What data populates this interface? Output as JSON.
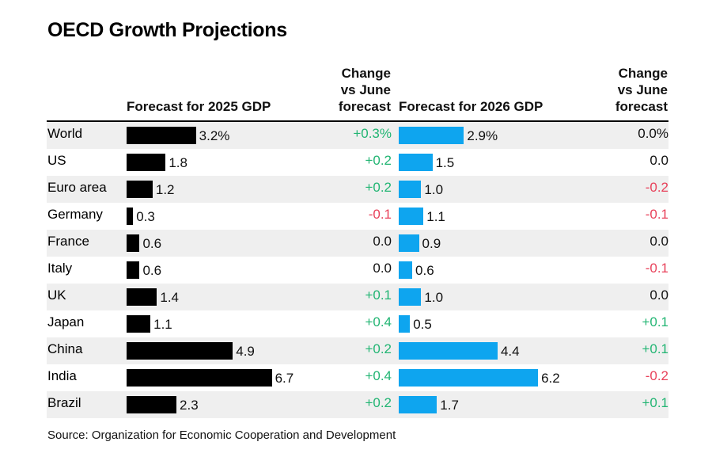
{
  "title": "OECD Growth Projections",
  "headers": {
    "f2025": "Forecast for 2025 GDP",
    "chg2025": [
      "Change",
      "vs June",
      "forecast"
    ],
    "f2026": "Forecast for 2026 GDP",
    "chg2026": [
      "Change",
      "vs June",
      "forecast"
    ]
  },
  "source": "Source: Organization for Economic Cooperation and Development",
  "colors": {
    "bar2025": "#000000",
    "bar2026": "#0ea5ef",
    "positive": "#22b573",
    "negative": "#e8415a",
    "neutral": "#111111",
    "shade": "#efefef"
  },
  "chart_data": {
    "type": "bar",
    "title": "OECD Growth Projections",
    "categories": [
      "World",
      "US",
      "Euro area",
      "Germany",
      "France",
      "Italy",
      "UK",
      "Japan",
      "China",
      "India",
      "Brazil"
    ],
    "series": [
      {
        "name": "Forecast for 2025 GDP",
        "values": [
          3.2,
          1.8,
          1.2,
          0.3,
          0.6,
          0.6,
          1.4,
          1.1,
          4.9,
          6.7,
          2.3
        ],
        "labels": [
          "3.2%",
          "1.8",
          "1.2",
          "0.3",
          "0.6",
          "0.6",
          "1.4",
          "1.1",
          "4.9",
          "6.7",
          "2.3"
        ]
      },
      {
        "name": "Forecast for 2026 GDP",
        "values": [
          2.9,
          1.5,
          1.0,
          1.1,
          0.9,
          0.6,
          1.0,
          0.5,
          4.4,
          6.2,
          1.7
        ],
        "labels": [
          "2.9%",
          "1.5",
          "1.0",
          "1.1",
          "0.9",
          "0.6",
          "1.0",
          "0.5",
          "4.4",
          "6.2",
          "1.7"
        ]
      }
    ],
    "changes_2025": [
      "+0.3%",
      "+0.2",
      "+0.2",
      "-0.1",
      "0.0",
      "0.0",
      "+0.1",
      "+0.4",
      "+0.2",
      "+0.4",
      "+0.2"
    ],
    "changes_2026": [
      "0.0%",
      "0.0",
      "-0.2",
      "-0.1",
      "0.0",
      "-0.1",
      "0.0",
      "+0.1",
      "+0.1",
      "-0.2",
      "+0.1"
    ]
  }
}
